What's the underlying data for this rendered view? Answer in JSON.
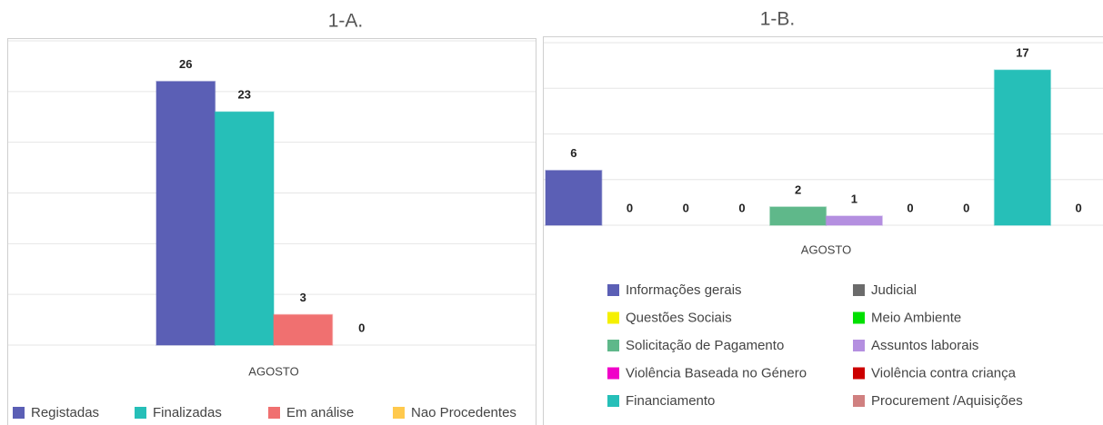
{
  "chart_data": [
    {
      "type": "bar",
      "title": "1-A.",
      "categories": [
        "AGOSTO"
      ],
      "ylim": [
        0,
        30
      ],
      "yticks": [
        0,
        5,
        10,
        15,
        20,
        25,
        30
      ],
      "grid": true,
      "legend": "bottom",
      "series": [
        {
          "name": "Registadas",
          "color": "#5b5fb5",
          "values": [
            26
          ]
        },
        {
          "name": "Finalizadas",
          "color": "#26bfb8",
          "values": [
            23
          ]
        },
        {
          "name": "Em análise",
          "color": "#f07070",
          "values": [
            3
          ]
        },
        {
          "name": "Nao Procedentes",
          "color": "#ffc94d",
          "values": [
            0
          ]
        }
      ]
    },
    {
      "type": "bar",
      "title": "1-B.",
      "categories": [
        "AGOSTO"
      ],
      "ylim": [
        0,
        20
      ],
      "yticks": [
        0,
        5,
        10,
        15,
        20
      ],
      "grid": true,
      "legend": "bottom",
      "series": [
        {
          "name": "Informações gerais",
          "color": "#5b5fb5",
          "values": [
            6
          ]
        },
        {
          "name": "Judicial",
          "color": "#6b6b6b",
          "values": [
            0
          ]
        },
        {
          "name": "Questões Sociais",
          "color": "#f5f000",
          "values": [
            0
          ]
        },
        {
          "name": "Meio Ambiente",
          "color": "#00e000",
          "values": [
            0
          ]
        },
        {
          "name": "Solicitação de Pagamento",
          "color": "#5fb88a",
          "values": [
            2
          ]
        },
        {
          "name": "Assuntos laborais",
          "color": "#b48fe0",
          "values": [
            1
          ]
        },
        {
          "name": "Violência Baseada no Género",
          "color": "#f000c8",
          "values": [
            0
          ]
        },
        {
          "name": "Violência contra criança",
          "color": "#cc0000",
          "values": [
            0
          ]
        },
        {
          "name": "Financiamento",
          "color": "#26bfb8",
          "values": [
            17
          ]
        },
        {
          "name": "Procurement /Aquisições",
          "color": "#d08080",
          "values": [
            0
          ]
        }
      ]
    }
  ]
}
